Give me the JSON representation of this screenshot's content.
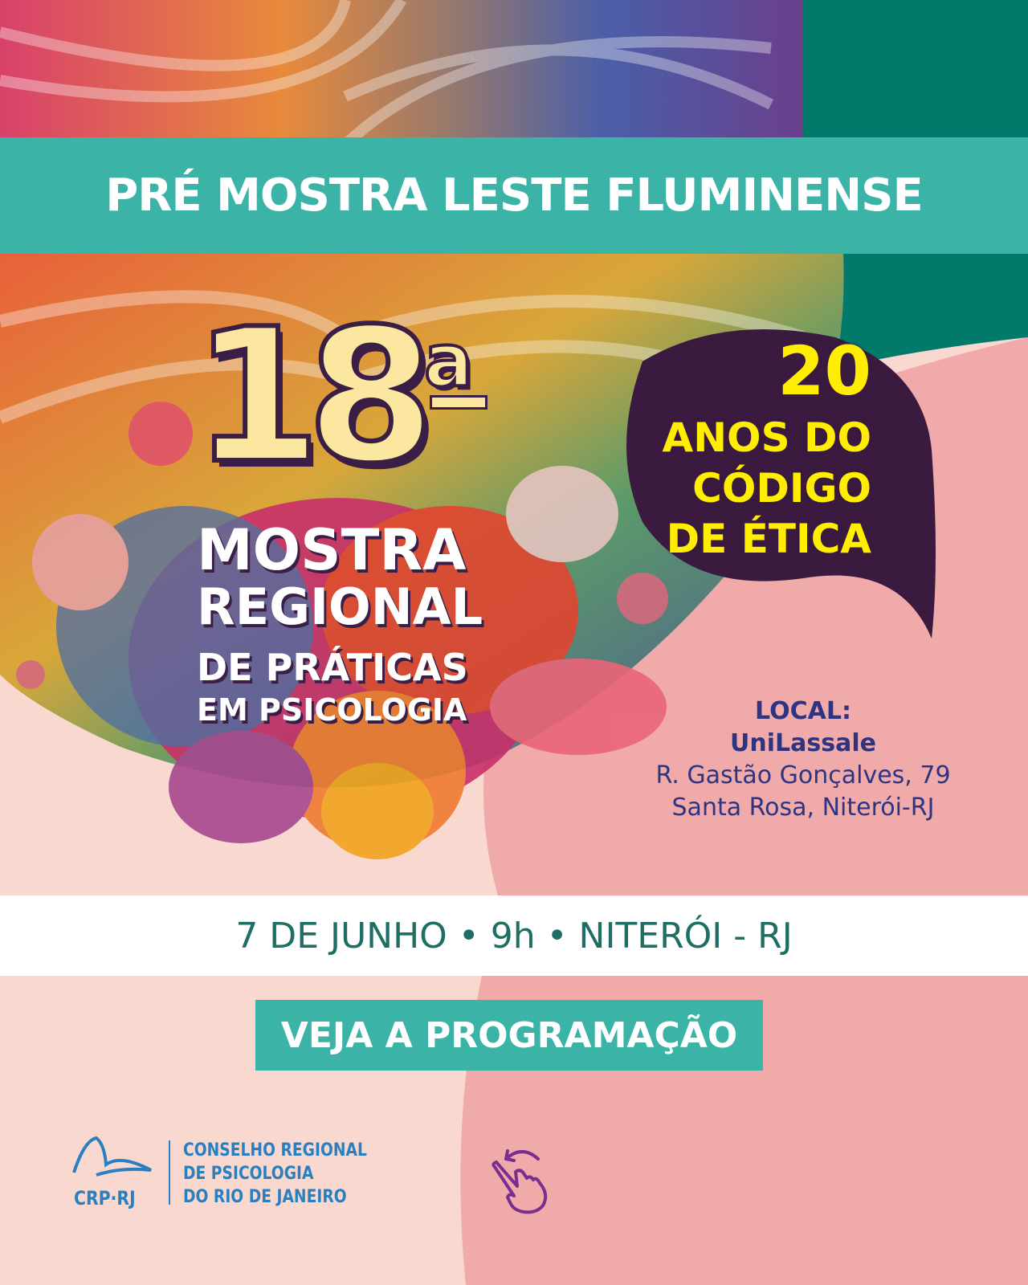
{
  "banner": {
    "title": "PRÉ MOSTRA LESTE FLUMINENSE"
  },
  "edition": {
    "number": "18",
    "ordinal": "a"
  },
  "event": {
    "line1": "MOSTRA",
    "line2": "REGIONAL",
    "line3": "DE PRÁTICAS",
    "line4": "EM PSICOLOGIA"
  },
  "anniversary": {
    "number": "20",
    "line1": "ANOS DO",
    "line2": "CÓDIGO",
    "line3": "DE ÉTICA"
  },
  "location": {
    "label": "LOCAL:",
    "venue": "UniLassale",
    "address": "R. Gastão Gonçalves, 79",
    "city": "Santa Rosa, Niterói-RJ"
  },
  "date_line": "7 DE JUNHO • 9h • NITERÓI - RJ",
  "cta_label": "VEJA A PROGRAMAÇÃO",
  "logo": {
    "acronym": "CRP·RJ",
    "line1": "CONSELHO REGIONAL",
    "line2": "DE PSICOLOGIA",
    "line3": "DO RIO DE JANEIRO"
  },
  "icons": {
    "swipe": "swipe-hand-icon"
  },
  "colors": {
    "teal": "#3bb3a6",
    "dark_teal": "#017a6c",
    "pink": "#efaaa9",
    "light_pink": "#f8d8cf",
    "purple": "#3b1a3f",
    "yellow": "#ffee00",
    "navy": "#2e3480",
    "logo_blue": "#2a7fc1"
  }
}
